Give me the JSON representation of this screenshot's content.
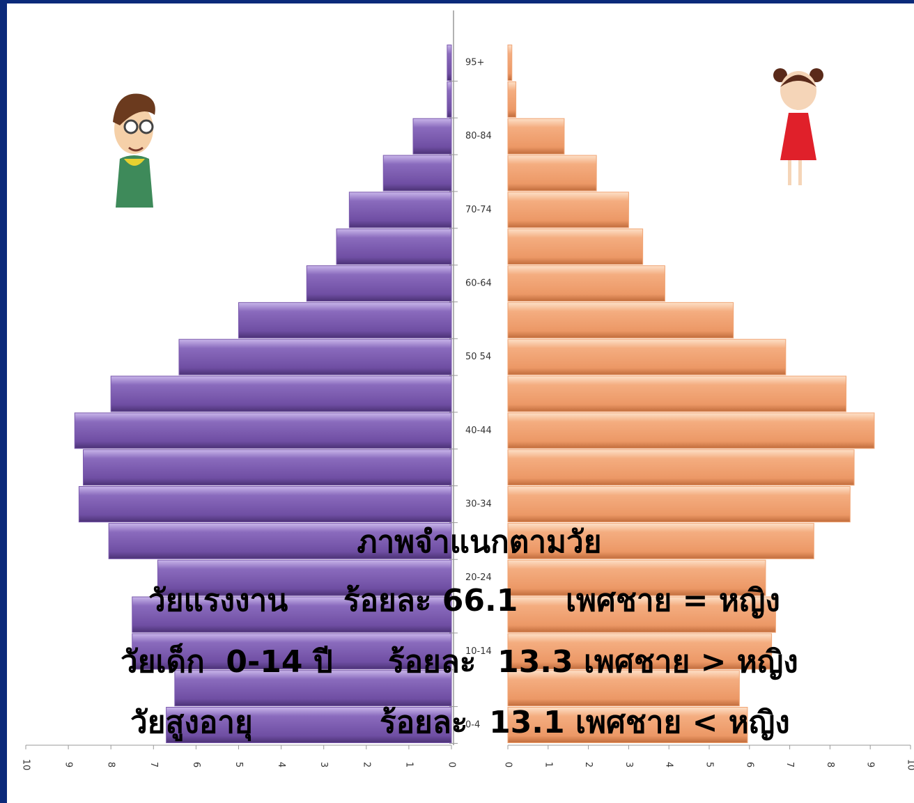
{
  "chart_data": {
    "type": "pyramid",
    "categories": [
      "0-4",
      null,
      "10-14",
      null,
      "20-24",
      null,
      "30-34",
      null,
      "40-44",
      null,
      "50 54",
      null,
      "60-64",
      null,
      "70-74",
      null,
      "80-84",
      null,
      "95+"
    ],
    "series": [
      {
        "color": "#7b5aad",
        "values": [
          6.7,
          6.5,
          7.5,
          7.5,
          6.9,
          8.05,
          8.75,
          8.65,
          8.85,
          8.0,
          6.4,
          5.0,
          3.4,
          2.7,
          2.4,
          1.6,
          0.9,
          0.1,
          0.1
        ]
      },
      {
        "color": "#f0a474",
        "values": [
          5.95,
          5.75,
          6.55,
          6.65,
          6.4,
          7.6,
          8.5,
          8.6,
          9.1,
          8.4,
          6.9,
          5.6,
          3.9,
          3.35,
          3.0,
          2.2,
          1.4,
          0.2,
          0.1
        ]
      }
    ],
    "xlim": [
      0,
      10
    ],
    "xticks": [
      0,
      1,
      2,
      3,
      4,
      5,
      6,
      7,
      8,
      9,
      10
    ],
    "annotations": [
      "ภาพจำแนกตามวัย",
      "วัยแรงงาน",
      "ร้อยละ 66.1",
      "เพศชาย = หญิง",
      "วัยเด็ก  0-14 ปี",
      "ร้อยละ  13.3 เพศชาย > หญิง",
      "วัยสูงอายุ",
      "ร้อยละ  13.1 เพศชาย < หญิง"
    ]
  }
}
